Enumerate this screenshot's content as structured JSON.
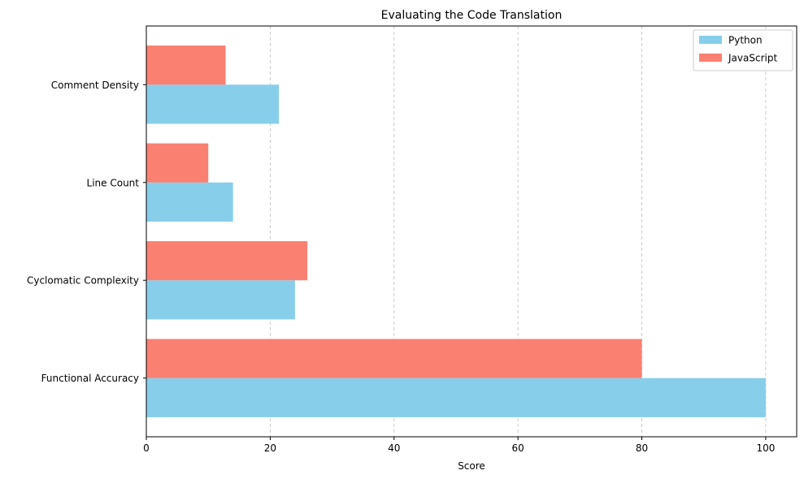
{
  "chart_data": {
    "type": "bar",
    "orientation": "horizontal",
    "title": "Evaluating the Code Translation",
    "xlabel": "Score",
    "ylabel": "",
    "categories": [
      "Functional Accuracy",
      "Cyclomatic Complexity",
      "Line Count",
      "Comment Density"
    ],
    "series": [
      {
        "name": "Python",
        "color": "#87ceeb",
        "values": [
          100,
          24,
          14,
          21.4
        ]
      },
      {
        "name": "JavaScript",
        "color": "#fa8072",
        "values": [
          80,
          26,
          10,
          12.8
        ]
      }
    ],
    "xlim": [
      0,
      105
    ],
    "xticks": [
      0,
      20,
      40,
      60,
      80,
      100
    ],
    "grid": "x-dashed",
    "legend_position": "top-right"
  }
}
